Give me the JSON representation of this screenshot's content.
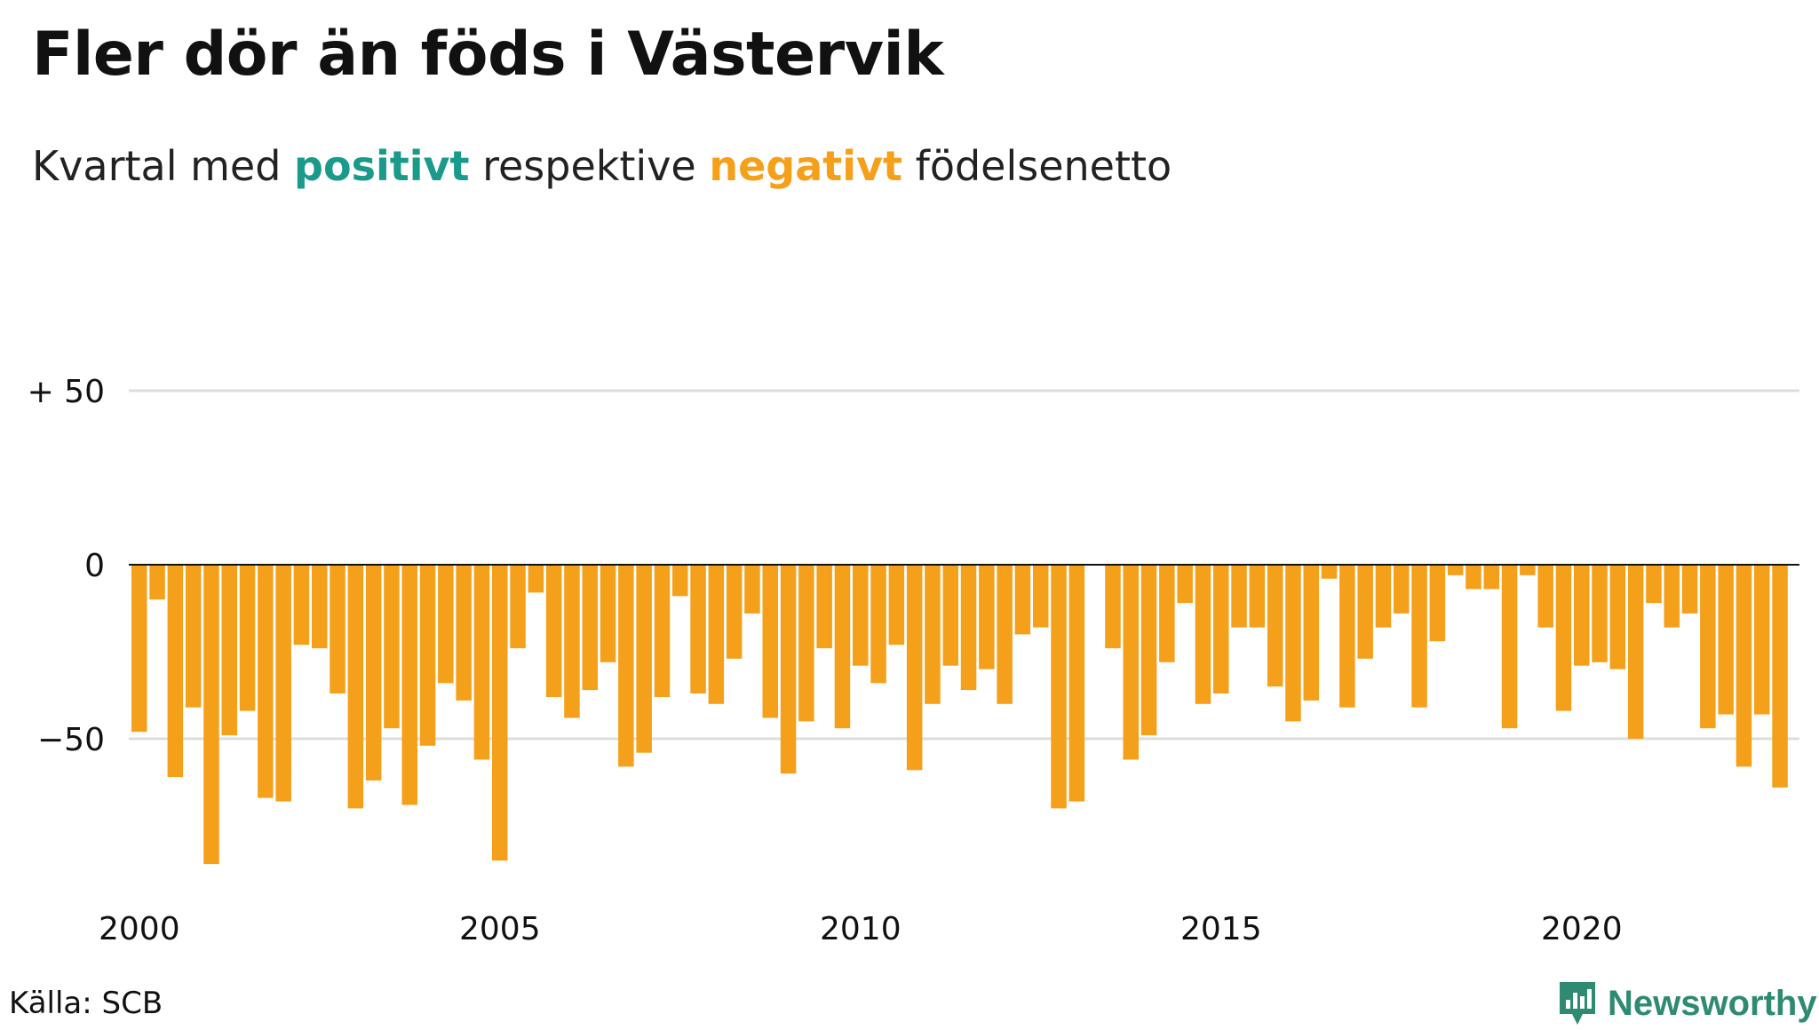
{
  "title": "Fler dör än föds i Västervik",
  "subtitle": {
    "part1": "Kvartal med ",
    "positive": "positivt",
    "part2": " respektive ",
    "negative": "negativt",
    "part3": " födelsenetto"
  },
  "source": "Källa: SCB",
  "logo": {
    "text": "Newsworthy",
    "icon": "bar-chart-badge-icon"
  },
  "colors": {
    "positive": "#1a9a8a",
    "negative": "#f5a01a",
    "grid": "#dddddd",
    "zero_line": "#111111",
    "logo": "#2f8a72"
  },
  "chart_data": {
    "type": "bar",
    "title": "Fler dör än föds i Västervik",
    "subtitle": "Kvartal med positivt respektive negativt födelsenetto",
    "x_start": 2000,
    "x_end": 2023,
    "x_ticks": [
      2000,
      2005,
      2010,
      2015,
      2020
    ],
    "x_tick_labels": [
      "2000",
      "2005",
      "2010",
      "2015",
      "2020"
    ],
    "y_ticks": [
      50,
      0,
      -50
    ],
    "y_tick_labels": [
      "+ 50",
      "0",
      "−50"
    ],
    "ylim": [
      -90,
      50
    ],
    "grid": true,
    "values": [
      -48,
      -10,
      -61,
      -41,
      -86,
      -49,
      -42,
      -67,
      -68,
      -23,
      -24,
      -37,
      -70,
      -62,
      -47,
      -69,
      -52,
      -34,
      -39,
      -56,
      -85,
      -24,
      -8,
      -38,
      -44,
      -36,
      -28,
      -58,
      -54,
      -38,
      -9,
      -37,
      -40,
      -27,
      -14,
      -44,
      -60,
      -45,
      -24,
      -47,
      -29,
      -34,
      -23,
      -59,
      -40,
      -29,
      -36,
      -30,
      -40,
      -20,
      -18,
      -70,
      -68,
      0,
      -24,
      -56,
      -49,
      -28,
      -11,
      -40,
      -37,
      -18,
      -18,
      -35,
      -45,
      -39,
      -4,
      -41,
      -27,
      -18,
      -14,
      -41,
      -22,
      -3,
      -7,
      -7,
      -47,
      -3,
      -18,
      -42,
      -29,
      -28,
      -30,
      -50,
      -11,
      -18,
      -14,
      -47,
      -43,
      -58,
      -43,
      -64
    ]
  }
}
